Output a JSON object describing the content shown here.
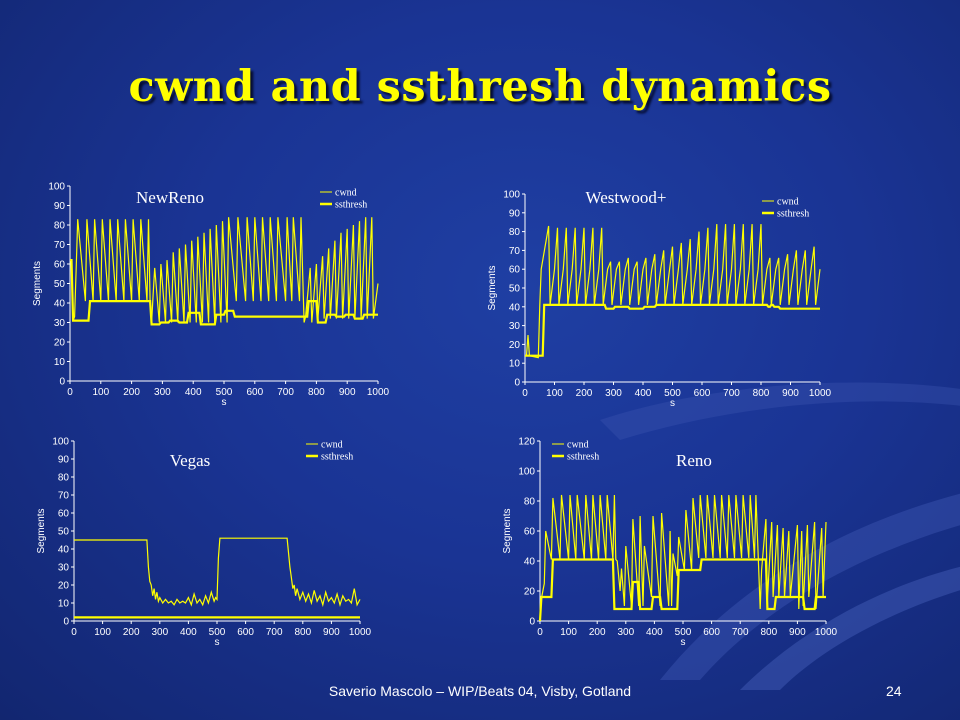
{
  "slide": {
    "title": "cwnd and ssthresh dynamics",
    "footer": "Saverio Mascolo  –  WIP/Beats 04,  Visby, Gotland",
    "page_number": "24"
  },
  "colors": {
    "background": "#1a3494",
    "title": "#ffff00",
    "series": "#ffff00",
    "text": "#ffffff"
  },
  "chart_data": [
    {
      "type": "line",
      "title": "NewReno",
      "xlabel": "s",
      "ylabel": "Segments",
      "xlim": [
        0,
        1000
      ],
      "ylim": [
        0,
        100
      ],
      "xticks": [
        0,
        100,
        200,
        300,
        400,
        500,
        600,
        700,
        800,
        900,
        1000
      ],
      "yticks": [
        0,
        10,
        20,
        30,
        40,
        50,
        60,
        70,
        80,
        90,
        100
      ],
      "legend": "top-right",
      "series": [
        {
          "name": "cwnd",
          "x": [
            0,
            5,
            10,
            15,
            20,
            25,
            50,
            55,
            75,
            80,
            100,
            105,
            125,
            130,
            150,
            155,
            175,
            180,
            200,
            205,
            225,
            230,
            250,
            255,
            260,
            265,
            270,
            275,
            290,
            295,
            310,
            315,
            330,
            335,
            350,
            355,
            370,
            375,
            390,
            395,
            410,
            415,
            430,
            435,
            450,
            455,
            470,
            475,
            490,
            495,
            510,
            515,
            540,
            545,
            570,
            575,
            595,
            600,
            620,
            625,
            645,
            650,
            670,
            675,
            700,
            705,
            720,
            725,
            745,
            750,
            760,
            765,
            780,
            785,
            800,
            805,
            820,
            825,
            840,
            845,
            860,
            865,
            880,
            885,
            900,
            905,
            920,
            925,
            940,
            945,
            960,
            965,
            980,
            985,
            1000
          ],
          "y": [
            62,
            62,
            31,
            33,
            58,
            83,
            41,
            83,
            41,
            83,
            41,
            83,
            41,
            83,
            41,
            83,
            41,
            83,
            41,
            83,
            41,
            83,
            41,
            83,
            41,
            30,
            45,
            58,
            30,
            60,
            30,
            62,
            30,
            66,
            30,
            68,
            30,
            70,
            30,
            72,
            30,
            74,
            30,
            76,
            30,
            78,
            30,
            80,
            30,
            82,
            30,
            84,
            41,
            84,
            41,
            84,
            41,
            84,
            41,
            84,
            41,
            84,
            41,
            84,
            41,
            84,
            41,
            84,
            41,
            84,
            30,
            33,
            58,
            30,
            60,
            32,
            64,
            32,
            68,
            32,
            72,
            32,
            76,
            32,
            78,
            32,
            80,
            32,
            82,
            32,
            84,
            32,
            84,
            32,
            50
          ]
        },
        {
          "name": "ssthresh",
          "x": [
            0,
            5,
            10,
            15,
            60,
            65,
            260,
            265,
            290,
            295,
            320,
            325,
            350,
            355,
            380,
            385,
            420,
            425,
            470,
            475,
            500,
            505,
            530,
            535,
            770,
            775,
            800,
            805,
            830,
            835,
            860,
            865,
            890,
            895,
            920,
            925,
            950,
            955,
            1000
          ],
          "y": [
            62,
            62,
            31,
            31,
            31,
            41,
            41,
            29,
            29,
            30,
            30,
            31,
            31,
            30,
            30,
            35,
            35,
            29,
            29,
            34,
            34,
            36,
            36,
            33,
            33,
            41,
            41,
            30,
            30,
            34,
            34,
            33,
            33,
            34,
            34,
            32,
            32,
            34,
            34
          ]
        }
      ]
    },
    {
      "type": "line",
      "title": "Westwood+",
      "xlabel": "s",
      "ylabel": "Segments",
      "xlim": [
        0,
        1000
      ],
      "ylim": [
        0,
        100
      ],
      "xticks": [
        0,
        100,
        200,
        300,
        400,
        500,
        600,
        700,
        800,
        900,
        1000
      ],
      "yticks": [
        0,
        10,
        20,
        30,
        40,
        50,
        60,
        70,
        80,
        90,
        100
      ],
      "legend": "top-right",
      "series": [
        {
          "name": "cwnd",
          "x": [
            0,
            5,
            10,
            15,
            45,
            50,
            55,
            80,
            85,
            100,
            110,
            115,
            130,
            140,
            145,
            160,
            170,
            175,
            190,
            200,
            205,
            220,
            230,
            235,
            250,
            260,
            265,
            280,
            290,
            295,
            310,
            320,
            325,
            340,
            350,
            355,
            370,
            380,
            385,
            400,
            410,
            415,
            430,
            440,
            445,
            460,
            470,
            475,
            490,
            500,
            505,
            520,
            530,
            535,
            550,
            560,
            565,
            580,
            590,
            595,
            610,
            620,
            625,
            640,
            650,
            655,
            670,
            680,
            685,
            700,
            710,
            715,
            730,
            740,
            745,
            760,
            770,
            775,
            790,
            800,
            805,
            820,
            830,
            835,
            850,
            860,
            865,
            880,
            890,
            895,
            910,
            920,
            925,
            940,
            950,
            955,
            970,
            980,
            985,
            1000
          ],
          "y": [
            14,
            14,
            25,
            14,
            13,
            41,
            60,
            83,
            41,
            60,
            82,
            41,
            60,
            82,
            41,
            60,
            82,
            41,
            60,
            82,
            41,
            60,
            82,
            41,
            60,
            82,
            41,
            60,
            64,
            41,
            60,
            64,
            41,
            60,
            66,
            41,
            60,
            64,
            41,
            60,
            66,
            41,
            60,
            68,
            41,
            60,
            70,
            41,
            60,
            72,
            41,
            60,
            74,
            41,
            60,
            76,
            41,
            60,
            80,
            41,
            60,
            82,
            41,
            60,
            84,
            41,
            60,
            84,
            41,
            60,
            84,
            41,
            60,
            84,
            41,
            60,
            84,
            41,
            60,
            84,
            41,
            60,
            66,
            41,
            60,
            66,
            41,
            60,
            68,
            41,
            60,
            70,
            41,
            60,
            70,
            41,
            60,
            72,
            41,
            60
          ]
        },
        {
          "name": "ssthresh",
          "x": [
            0,
            5,
            60,
            65,
            270,
            275,
            300,
            305,
            350,
            355,
            400,
            405,
            440,
            445,
            480,
            485,
            820,
            825,
            830,
            835,
            840,
            845,
            860,
            865,
            1000
          ],
          "y": [
            14,
            14,
            14,
            41,
            41,
            39,
            39,
            40,
            40,
            39,
            39,
            40,
            40,
            41,
            41,
            41,
            41,
            40,
            40,
            41,
            41,
            40,
            40,
            39,
            39
          ]
        }
      ]
    },
    {
      "type": "line",
      "title": "Vegas",
      "xlabel": "s",
      "ylabel": "Segments",
      "xlim": [
        0,
        1000
      ],
      "ylim": [
        0,
        100
      ],
      "xticks": [
        0,
        100,
        200,
        300,
        400,
        500,
        600,
        700,
        800,
        900,
        1000
      ],
      "yticks": [
        0,
        10,
        20,
        30,
        40,
        50,
        60,
        70,
        80,
        90,
        100
      ],
      "legend": "top-right",
      "series": [
        {
          "name": "cwnd",
          "x": [
            0,
            5,
            255,
            260,
            265,
            270,
            275,
            280,
            285,
            290,
            295,
            300,
            310,
            320,
            330,
            340,
            350,
            360,
            370,
            380,
            390,
            400,
            410,
            420,
            430,
            440,
            450,
            460,
            470,
            480,
            490,
            495,
            500,
            505,
            510,
            740,
            745,
            750,
            755,
            760,
            765,
            770,
            775,
            780,
            790,
            800,
            810,
            820,
            830,
            840,
            850,
            860,
            870,
            880,
            890,
            900,
            910,
            920,
            930,
            940,
            950,
            960,
            970,
            980,
            990,
            1000
          ],
          "y": [
            45,
            45,
            45,
            30,
            22,
            20,
            14,
            18,
            12,
            16,
            11,
            13,
            10,
            12,
            10,
            11,
            9,
            12,
            10,
            11,
            10,
            13,
            9,
            15,
            10,
            12,
            9,
            14,
            10,
            16,
            11,
            13,
            12,
            35,
            46,
            46,
            46,
            38,
            30,
            24,
            18,
            20,
            14,
            18,
            12,
            16,
            11,
            15,
            10,
            17,
            11,
            14,
            9,
            16,
            11,
            13,
            10,
            15,
            9,
            14,
            11,
            12,
            10,
            18,
            9,
            12
          ]
        },
        {
          "name": "ssthresh",
          "x": [
            0,
            1000
          ],
          "y": [
            2,
            2
          ]
        }
      ]
    },
    {
      "type": "line",
      "title": "Reno",
      "xlabel": "s",
      "ylabel": "Segments",
      "xlim": [
        0,
        1000
      ],
      "ylim": [
        0,
        120
      ],
      "xticks": [
        0,
        100,
        200,
        300,
        400,
        500,
        600,
        700,
        800,
        900,
        1000
      ],
      "yticks": [
        0,
        20,
        40,
        60,
        80,
        100,
        120
      ],
      "legend": "top-left",
      "series": [
        {
          "name": "cwnd",
          "x": [
            0,
            5,
            15,
            20,
            40,
            45,
            70,
            75,
            100,
            105,
            125,
            130,
            155,
            160,
            180,
            185,
            205,
            210,
            230,
            235,
            255,
            260,
            265,
            270,
            280,
            285,
            295,
            300,
            320,
            325,
            345,
            350,
            360,
            365,
            390,
            395,
            420,
            425,
            450,
            455,
            460,
            465,
            480,
            485,
            505,
            510,
            530,
            535,
            555,
            560,
            580,
            585,
            605,
            610,
            630,
            635,
            655,
            660,
            680,
            685,
            705,
            710,
            730,
            735,
            750,
            755,
            770,
            775,
            790,
            795,
            810,
            815,
            830,
            835,
            850,
            855,
            870,
            875,
            900,
            905,
            915,
            920,
            935,
            940,
            960,
            965,
            985,
            990,
            1000
          ],
          "y": [
            0,
            15,
            25,
            60,
            41,
            82,
            41,
            84,
            41,
            84,
            41,
            84,
            41,
            84,
            41,
            84,
            41,
            84,
            41,
            84,
            41,
            84,
            41,
            40,
            20,
            35,
            10,
            50,
            10,
            68,
            10,
            70,
            10,
            50,
            16,
            70,
            10,
            72,
            10,
            60,
            10,
            45,
            30,
            56,
            34,
            74,
            34,
            82,
            42,
            84,
            42,
            84,
            42,
            84,
            42,
            84,
            42,
            84,
            42,
            84,
            42,
            84,
            42,
            84,
            42,
            84,
            8,
            34,
            68,
            14,
            66,
            16,
            64,
            16,
            62,
            16,
            60,
            16,
            64,
            8,
            60,
            10,
            64,
            16,
            66,
            8,
            62,
            16,
            66
          ]
        },
        {
          "name": "ssthresh",
          "x": [
            0,
            5,
            40,
            45,
            255,
            260,
            295,
            300,
            320,
            325,
            345,
            350,
            390,
            395,
            420,
            425,
            450,
            455,
            480,
            485,
            505,
            510,
            560,
            565,
            745,
            750,
            790,
            795,
            820,
            825,
            880,
            885,
            920,
            925,
            960,
            965,
            1000
          ],
          "y": [
            0,
            16,
            16,
            41,
            41,
            8,
            8,
            8,
            8,
            26,
            26,
            8,
            8,
            16,
            16,
            8,
            8,
            8,
            8,
            34,
            34,
            34,
            34,
            41,
            41,
            41,
            41,
            8,
            8,
            16,
            16,
            16,
            16,
            8,
            8,
            16,
            16
          ]
        }
      ]
    }
  ]
}
